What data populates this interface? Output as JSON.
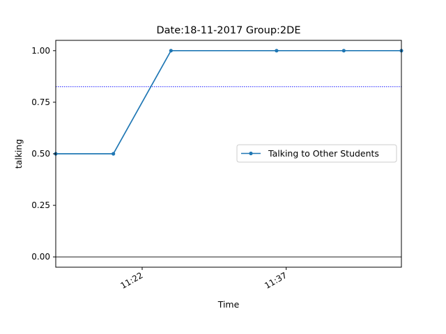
{
  "chart_data": {
    "type": "line",
    "title": "Date:18-11-2017  Group:2DE",
    "xlabel": "Time",
    "ylabel": "talking",
    "xlim": [
      "11:13",
      "11:49"
    ],
    "ylim": [
      -0.05,
      1.05
    ],
    "x_ticks": [
      "11:22",
      "11:37"
    ],
    "y_ticks": [
      "0.00",
      "0.25",
      "0.50",
      "0.75",
      "1.00"
    ],
    "legend_position": "center-right",
    "grid": false,
    "series": [
      {
        "name": "Talking to Other Students",
        "color": "#1f77b4",
        "x": [
          "11:13",
          "11:19",
          "11:25",
          "11:36",
          "11:43",
          "11:49"
        ],
        "y": [
          0.5,
          0.5,
          1.0,
          1.0,
          1.0,
          1.0
        ]
      }
    ],
    "reference_lines": [
      {
        "orientation": "horizontal",
        "y": 0.825,
        "color": "#0000ff",
        "style": "dotted"
      },
      {
        "orientation": "horizontal",
        "y": 0.0,
        "color": "#000000",
        "style": "solid"
      }
    ]
  }
}
